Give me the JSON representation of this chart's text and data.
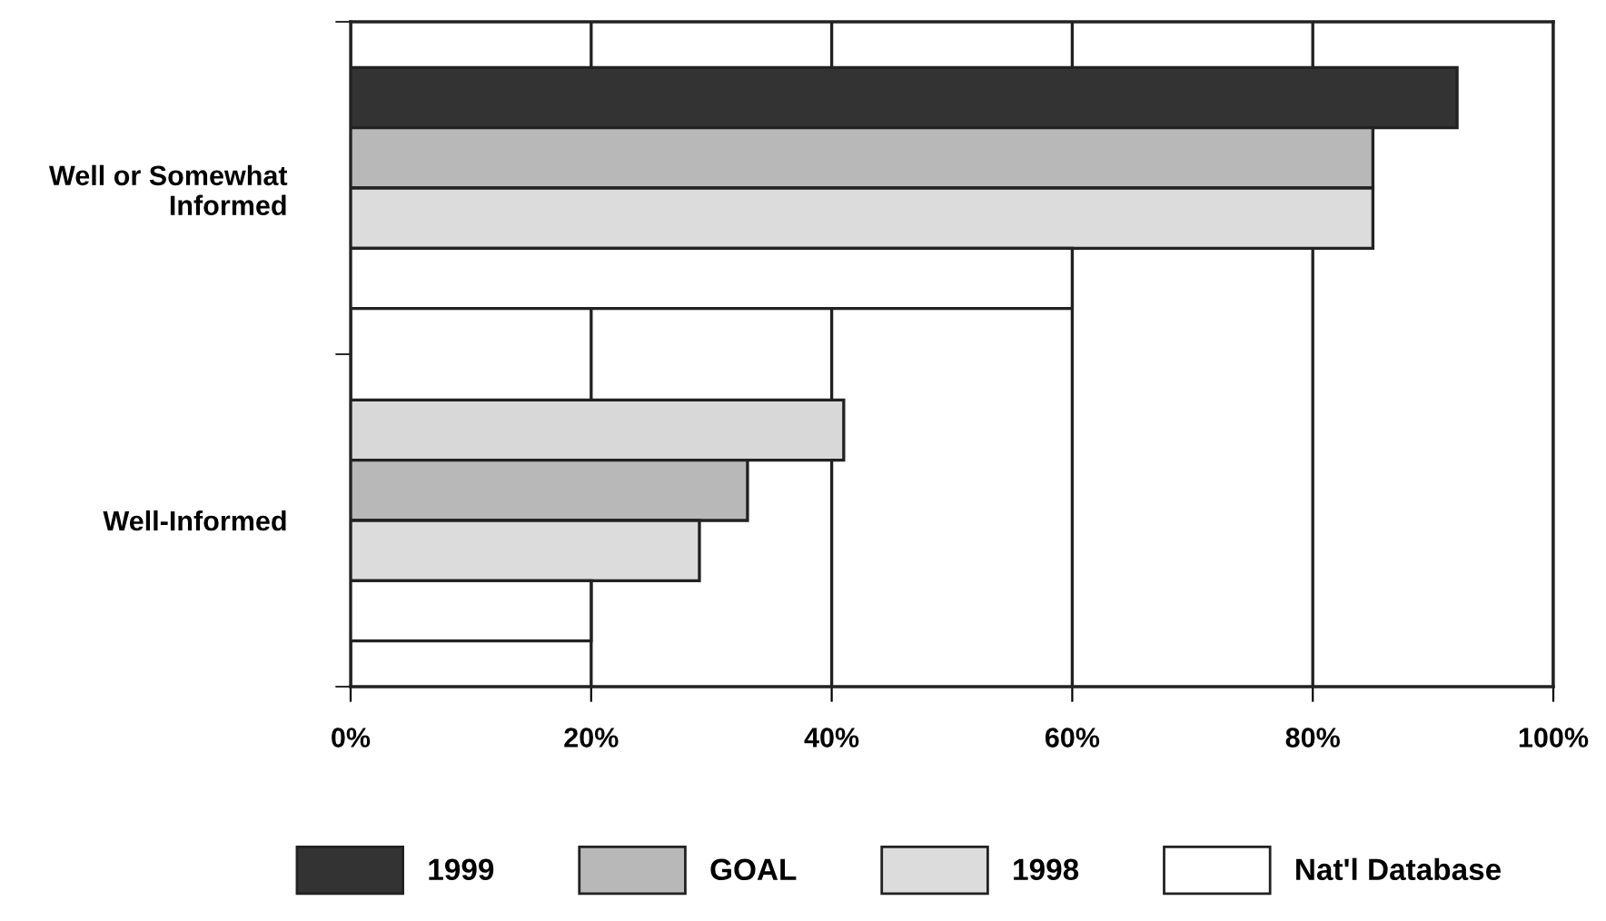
{
  "chart_data": {
    "type": "bar",
    "orientation": "horizontal",
    "categories": [
      "Well or Somewhat\nInformed",
      "Well-Informed"
    ],
    "series": [
      {
        "name": "1999",
        "color": "#333333",
        "colors": [
          "#333333",
          "#d8d8d8"
        ],
        "values": [
          92,
          41
        ]
      },
      {
        "name": "GOAL",
        "color": "#b8b8b8",
        "values": [
          85,
          33
        ]
      },
      {
        "name": "1998",
        "color": "#dcdcdc",
        "values": [
          85,
          29
        ]
      },
      {
        "name": "Nat'l Database",
        "color": "#ffffff",
        "values": [
          60,
          20
        ]
      }
    ],
    "xlim": [
      0,
      100
    ],
    "xticks": [
      {
        "value": 0,
        "label": "0%"
      },
      {
        "value": 20,
        "label": "20%"
      },
      {
        "value": 40,
        "label": "40%"
      },
      {
        "value": 60,
        "label": "60%"
      },
      {
        "value": 80,
        "label": "80%"
      },
      {
        "value": 100,
        "label": "100%"
      }
    ],
    "grid": "x",
    "legend": "bottom"
  }
}
